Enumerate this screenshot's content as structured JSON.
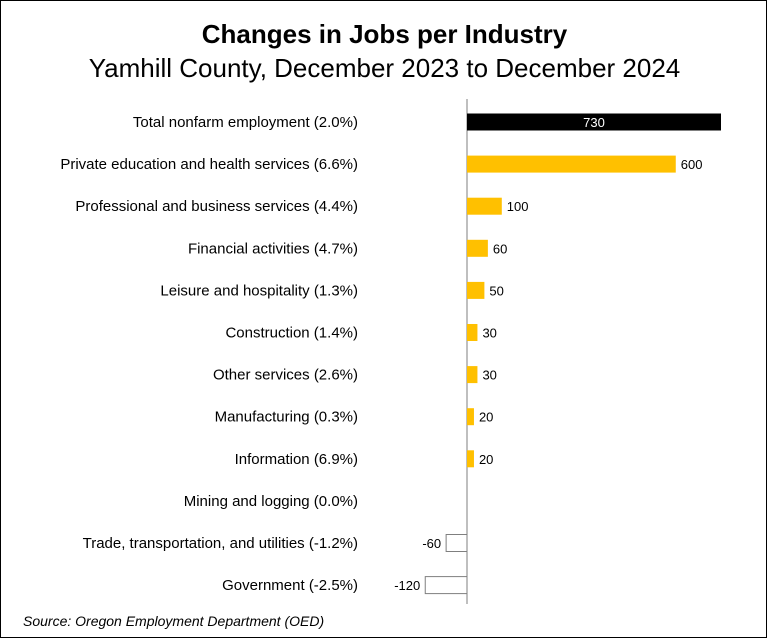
{
  "header": {
    "title": "Changes in Jobs per Industry",
    "subtitle": "Yamhill County, December 2023 to December 2024"
  },
  "footer": {
    "source": "Source: Oregon Employment Department (OED)"
  },
  "colors": {
    "total_bar": "#000000",
    "positive_bar": "#FFC000",
    "negative_bar": "#ffffff",
    "negative_bar_border": "#7f7f7f",
    "axis": "#7f7f7f",
    "total_label": "#ffffff"
  },
  "chart_data": {
    "type": "bar",
    "orientation": "horizontal",
    "categories": [
      "Total nonfarm employment (2.0%)",
      "Private education and health services (6.6%)",
      "Professional and business services (4.4%)",
      "Financial activities (4.7%)",
      "Leisure and hospitality (1.3%)",
      "Construction (1.4%)",
      "Other services (2.6%)",
      "Manufacturing (0.3%)",
      "Information (6.9%)",
      "Mining and logging (0.0%)",
      "Trade, transportation, and utilities (-1.2%)",
      "Government (-2.5%)"
    ],
    "values": [
      730,
      600,
      100,
      60,
      50,
      30,
      30,
      20,
      20,
      0,
      -60,
      -120
    ],
    "labels": [
      "730",
      "600",
      "100",
      "60",
      "50",
      "30",
      "30",
      "20",
      "20",
      "",
      "-60",
      "-120"
    ],
    "xlim": [
      -130,
      730
    ],
    "grid": false,
    "legend": "none"
  }
}
